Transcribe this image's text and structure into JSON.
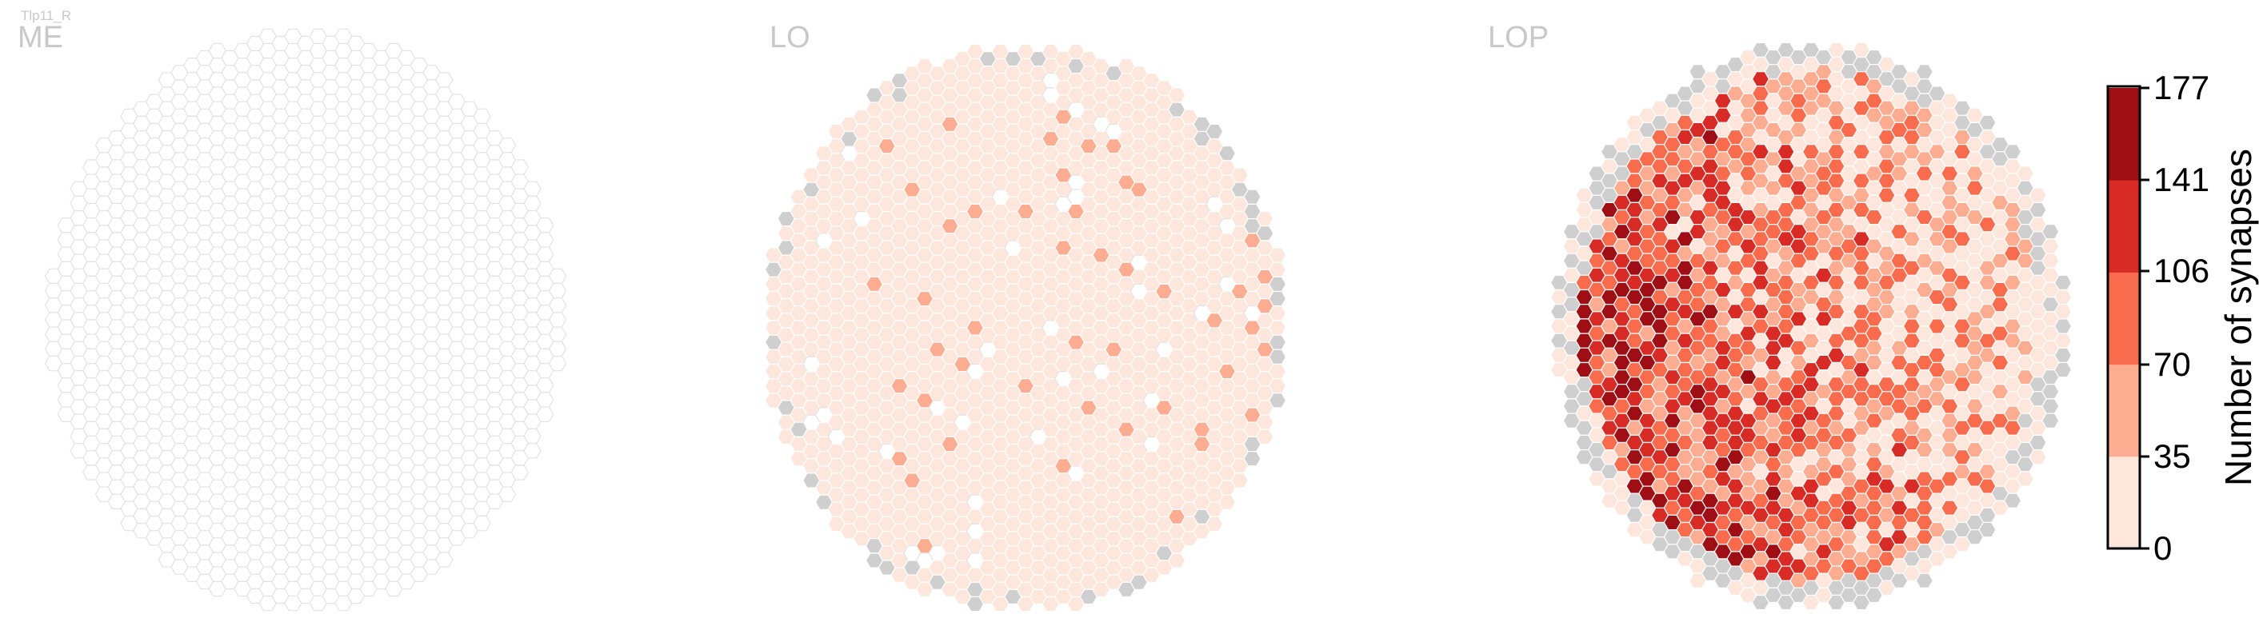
{
  "cell_type": "Tlp11_R",
  "panels": [
    {
      "name": "ME"
    },
    {
      "name": "LO"
    },
    {
      "name": "LOP"
    }
  ],
  "colorbar": {
    "title": "Number of synapses",
    "ticks": [
      "177",
      "141",
      "106",
      "70",
      "35",
      "0"
    ],
    "colors": [
      "#fde6dc",
      "#fcad91",
      "#f86b4c",
      "#d92b26",
      "#9e0e14"
    ],
    "missing_color": "#cfcfcf",
    "empty_color": "#ffffff",
    "edge_color": "#e3e3e3"
  },
  "chart_data": {
    "type": "heatmap",
    "title": "Tlp11_R",
    "value_label": "Number of synapses",
    "value_range": [
      0,
      177
    ],
    "panels": [
      "ME",
      "LO",
      "LOP"
    ],
    "summary": {
      "ME": "nearly all columns empty; a small patch of low-count (0-35) columns in the upper-left",
      "LO": "most columns low (0-35) with a few 35-70 columns; gray (no column data) along the outer edge",
      "LOP": "widespread 0-177 counts, highest (141-177) on the left side; gray cells around the rim"
    }
  }
}
